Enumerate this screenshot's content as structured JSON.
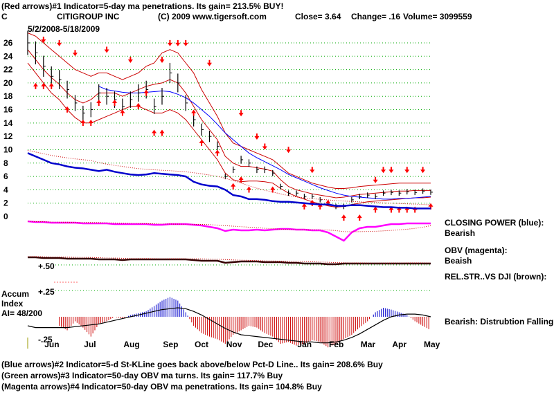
{
  "header": {
    "line1": "(Red arrows)#1 Indicator=5-day ma penetrations. Its gain= 213.5% BUY!",
    "symbol": "C",
    "company": "CITIGROUP INC",
    "copyright": "(C) 2009 www.tigersoft.com",
    "close": "Close=  3.64",
    "change": "Change= .16",
    "volume": "Volume= 3099559",
    "date_range": "5/2/2008-5/18/2009"
  },
  "right_labels": {
    "closing_power": "CLOSING POWER (blue):",
    "closing_power_state": "Bearish",
    "obv": "OBV (magenta):",
    "obv_state": "Beaish",
    "relstr": "REL.STR..VS DJI (brown):",
    "accum_state": "Bearish: Distrubtion Falling."
  },
  "left_labels": {
    "plus50": "+.50",
    "plus25": "+.25",
    "minus25": "-.25",
    "accum_title": "Accum",
    "accum_index": "Index",
    "ai": "AI= 48/200"
  },
  "footer": {
    "line1": "(Blue arrows)#2 Indicator=5-d St-KLine goes back above/below Pct-D Line.. Its gain= 208.6% Buy",
    "line2": "(Green arrows)#3 Indicator=50-day OBV ma turns. Its gain= 117.7% Buy",
    "line3": "(Magenta arrows)#4 Indicator=50-day OBV ma penetrations. Its gain= 104.8% Buy"
  },
  "colors": {
    "price": "#000000",
    "bands": "#cc0000",
    "ma50": "#0000ff",
    "closing_power": "#0000cc",
    "obv": "#ff00ff",
    "relstr": "#330000",
    "accum": "#cc0000",
    "accum_pos": "#0000cc",
    "arrow": "#ff0000",
    "grid": "#00aa00"
  },
  "chart_data": {
    "type": "line",
    "y_ticks": [
      0,
      2,
      4,
      6,
      8,
      10,
      12,
      14,
      16,
      18,
      20,
      22,
      24,
      26
    ],
    "ylim": [
      0,
      26
    ],
    "x_tick_labels": [
      "Jun",
      "Jul",
      "Aug",
      "Sep",
      "Oct",
      "Nov",
      "Dec",
      "Jan",
      "Feb",
      "Mar",
      "Apr",
      "May"
    ],
    "x_tick_index": [
      3,
      8,
      13,
      18,
      22,
      26,
      30,
      35,
      39,
      43,
      47,
      51
    ],
    "series": [
      {
        "key": "price",
        "values": [
          26,
          24.5,
          22.5,
          21,
          20.5,
          19,
          17,
          15.5,
          16,
          18.5,
          18,
          17.5,
          16.5,
          17.5,
          18.5,
          19,
          16.5,
          18,
          21.5,
          20,
          17,
          14.5,
          13,
          12,
          10.5,
          6,
          7,
          8.5,
          8,
          7,
          7,
          6.5,
          4.5,
          3.5,
          3.5,
          3,
          3,
          2.5,
          2,
          1.5,
          1.5,
          2.5,
          3,
          3.2,
          3,
          3.5,
          3.6,
          3.5,
          3.7,
          3.6,
          3.8,
          3.64
        ]
      },
      {
        "key": "upper_band",
        "values": [
          27.5,
          27,
          26,
          25,
          24,
          23,
          22,
          21.5,
          21,
          21.5,
          21.5,
          21,
          20.5,
          21,
          21.5,
          22.5,
          23,
          24.5,
          25,
          24.5,
          23,
          21.5,
          19,
          17,
          15,
          12.5,
          11,
          10.5,
          10,
          9.5,
          9,
          8.5,
          7.5,
          6.5,
          6,
          5.5,
          5,
          4.7,
          4.4,
          4.2,
          4.2,
          4.3,
          4.5,
          4.6,
          4.7,
          4.8,
          4.9,
          5,
          5,
          5,
          5,
          5
        ]
      },
      {
        "key": "ma_mid",
        "values": [
          25,
          23.5,
          22,
          20.8,
          19.8,
          18.5,
          17.5,
          17,
          17.5,
          18.5,
          18.5,
          18.5,
          18,
          18.5,
          19,
          19.5,
          19.8,
          20,
          20.5,
          20,
          18.5,
          16.5,
          14.5,
          13,
          11.5,
          9,
          8,
          7.5,
          7.5,
          7.3,
          7.1,
          6.8,
          5.5,
          4.5,
          4,
          3.7,
          3.4,
          3.2,
          3,
          2.8,
          2.9,
          3.1,
          3.3,
          3.4,
          3.5,
          3.6,
          3.7,
          3.8,
          3.8,
          3.9,
          3.9,
          3.9
        ]
      },
      {
        "key": "lower_band",
        "values": [
          23,
          21.5,
          20,
          18.5,
          17.5,
          16,
          14.8,
          14,
          14,
          14.5,
          15,
          15.5,
          16,
          16.5,
          16.5,
          16,
          15.5,
          15.5,
          16,
          15.5,
          14.5,
          13,
          11.5,
          10,
          8.5,
          6.5,
          5.5,
          5.2,
          5.3,
          5.3,
          5.2,
          5,
          4.2,
          3.5,
          3,
          2.6,
          2.2,
          1.9,
          1.6,
          1.4,
          1.5,
          1.8,
          2,
          2.2,
          2.3,
          2.4,
          2.5,
          2.6,
          2.7,
          2.8,
          2.8,
          2.9
        ]
      },
      {
        "key": "ma50",
        "values": [
          null,
          null,
          null,
          null,
          null,
          null,
          null,
          null,
          null,
          19.5,
          19,
          18.8,
          18.6,
          18.5,
          18.5,
          18.6,
          18.7,
          18.8,
          18.7,
          18.3,
          17.8,
          17,
          16,
          15,
          13.8,
          12.5,
          11.5,
          10.5,
          9.5,
          8.8,
          8.2,
          7.6,
          7,
          6.3,
          5.8,
          5.3,
          4.8,
          4.3,
          3.9,
          3.5,
          3.2,
          3,
          2.9,
          2.8,
          2.7,
          2.6,
          2.6,
          2.7,
          2.7,
          2.8,
          2.9,
          3
        ]
      }
    ],
    "red_down_arrows": [
      {
        "i": 2,
        "y": 26
      },
      {
        "i": 4,
        "y": 25.5
      },
      {
        "i": 6,
        "y": 24
      },
      {
        "i": 10,
        "y": 24.5
      },
      {
        "i": 13,
        "y": 23
      },
      {
        "i": 17,
        "y": 23
      },
      {
        "i": 18,
        "y": 25.5
      },
      {
        "i": 19,
        "y": 25.5
      },
      {
        "i": 20,
        "y": 25.5
      },
      {
        "i": 23,
        "y": 22.5
      },
      {
        "i": 27,
        "y": 15
      },
      {
        "i": 29,
        "y": 11.5
      },
      {
        "i": 30,
        "y": 10
      },
      {
        "i": 33,
        "y": 9.5
      },
      {
        "i": 36,
        "y": 6.5
      },
      {
        "i": 44,
        "y": 5
      },
      {
        "i": 45,
        "y": 6.5
      },
      {
        "i": 46,
        "y": 6.5
      },
      {
        "i": 48,
        "y": 6.5
      },
      {
        "i": 50,
        "y": 6.5
      }
    ],
    "red_up_arrows": [
      {
        "i": 1,
        "y": 20
      },
      {
        "i": 2,
        "y": 20
      },
      {
        "i": 3,
        "y": 20
      },
      {
        "i": 5,
        "y": 16.5
      },
      {
        "i": 7,
        "y": 14.5
      },
      {
        "i": 8,
        "y": 14.5
      },
      {
        "i": 9,
        "y": 17.5
      },
      {
        "i": 11,
        "y": 17.5
      },
      {
        "i": 12,
        "y": 16
      },
      {
        "i": 14,
        "y": 17
      },
      {
        "i": 15,
        "y": 19
      },
      {
        "i": 16,
        "y": 13
      },
      {
        "i": 17,
        "y": 13
      },
      {
        "i": 21,
        "y": 16
      },
      {
        "i": 22,
        "y": 11.5
      },
      {
        "i": 24,
        "y": 10
      },
      {
        "i": 26,
        "y": 5
      },
      {
        "i": 27,
        "y": 6
      },
      {
        "i": 28,
        "y": 4.5
      },
      {
        "i": 31,
        "y": 4.5
      },
      {
        "i": 35,
        "y": 2
      },
      {
        "i": 36,
        "y": 2.5
      },
      {
        "i": 37,
        "y": 2
      },
      {
        "i": 38,
        "y": 2.5
      },
      {
        "i": 40,
        "y": 0.3
      },
      {
        "i": 42,
        "y": 0.3
      },
      {
        "i": 44,
        "y": 1.5
      },
      {
        "i": 46,
        "y": 1.5
      },
      {
        "i": 47,
        "y": 1.5
      },
      {
        "i": 48,
        "y": 1.5
      },
      {
        "i": 49,
        "y": 1.5
      },
      {
        "i": 51,
        "y": 2
      }
    ],
    "closing_power": [
      9.5,
      9,
      8.5,
      8,
      7.8,
      7.5,
      7.3,
      7.2,
      7,
      6.8,
      7,
      6.7,
      6.5,
      6.3,
      6.2,
      6.3,
      6.5,
      6.4,
      6.3,
      6.2,
      6,
      5.2,
      4.8,
      4.6,
      4.5,
      4,
      3.2,
      3,
      2.6,
      2.6,
      2.5,
      2.3,
      2.2,
      2.2,
      2.1,
      2,
      1.9,
      1.8,
      1.8,
      1.6,
      1.6,
      1.7,
      1.7,
      1.6,
      1.5,
      1.4,
      1.4,
      1.3,
      1.3,
      1.2,
      1.2,
      1.2
    ],
    "obv": [
      50,
      49,
      49,
      48,
      48,
      48,
      48,
      47,
      47,
      47,
      47,
      46,
      46,
      46,
      46,
      46,
      45,
      45,
      46,
      46,
      46,
      45,
      44,
      42,
      40,
      36,
      38,
      37,
      37,
      38,
      37,
      38,
      39,
      39,
      38,
      38,
      37,
      37,
      34,
      28,
      22,
      34,
      40,
      42,
      42,
      44,
      46,
      46,
      47,
      47,
      47,
      47
    ],
    "relstr": [
      38,
      38,
      37,
      37,
      37,
      36,
      36,
      36,
      36,
      35,
      35,
      35,
      34,
      35,
      35,
      35,
      35,
      35,
      35,
      35,
      35,
      34,
      33,
      33,
      33,
      30,
      31,
      32,
      32,
      32,
      31,
      31,
      31,
      30,
      30,
      29,
      29,
      29,
      28,
      28,
      29,
      29,
      29,
      29,
      29,
      29,
      29,
      29,
      29,
      29,
      29,
      29
    ],
    "accum_index": [
      -0.3,
      -0.25,
      -0.2,
      -0.18,
      -0.1,
      -0.15,
      -0.05,
      -0.12,
      -0.22,
      -0.08,
      -0.05,
      0.0,
      -0.02,
      0.02,
      0.04,
      0.06,
      0.12,
      0.18,
      0.22,
      0.18,
      0.05,
      -0.1,
      -0.18,
      -0.22,
      -0.25,
      -0.3,
      -0.2,
      -0.15,
      -0.1,
      -0.12,
      -0.18,
      -0.22,
      -0.3,
      -0.28,
      -0.32,
      -0.3,
      -0.26,
      -0.28,
      -0.34,
      -0.3,
      -0.25,
      -0.2,
      -0.12,
      -0.05,
      0.05,
      0.1,
      0.08,
      0.05,
      0.02,
      -0.05,
      -0.1,
      -0.15
    ],
    "accum_ma": [
      -0.1,
      -0.12,
      -0.12,
      -0.12,
      -0.12,
      -0.12,
      -0.11,
      -0.1,
      -0.09,
      -0.08,
      -0.06,
      -0.04,
      -0.02,
      0.0,
      0.02,
      0.04,
      0.06,
      0.08,
      0.09,
      0.1,
      0.09,
      0.06,
      0.02,
      -0.03,
      -0.08,
      -0.13,
      -0.17,
      -0.2,
      -0.21,
      -0.22,
      -0.23,
      -0.24,
      -0.25,
      -0.26,
      -0.27,
      -0.28,
      -0.28,
      -0.29,
      -0.29,
      -0.28,
      -0.26,
      -0.23,
      -0.19,
      -0.14,
      -0.09,
      -0.04,
      0.0,
      0.02,
      0.03,
      0.03,
      0.02,
      0.0
    ]
  }
}
